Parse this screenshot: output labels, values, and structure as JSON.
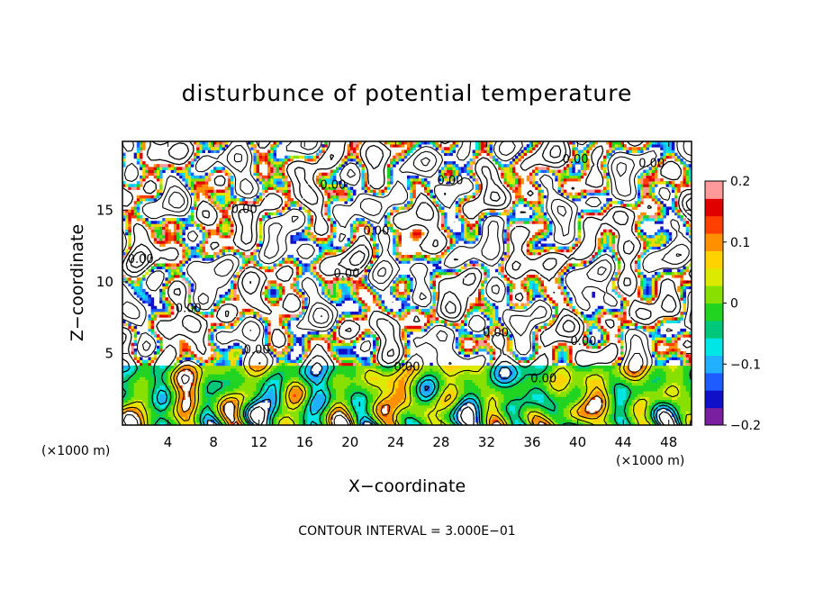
{
  "chart_data": {
    "type": "heatmap",
    "title": "disturbunce of potential temperature",
    "xlabel": "X−coordinate",
    "ylabel": "Z−coordinate",
    "x_unit": "(×1000 m)",
    "y_unit": "(×1000 m)",
    "footer": "CONTOUR INTERVAL = 3.000E−01",
    "x_ticks": [
      "4",
      "8",
      "12",
      "16",
      "20",
      "24",
      "28",
      "32",
      "36",
      "40",
      "44",
      "48"
    ],
    "x_tick_values": [
      4,
      8,
      12,
      16,
      20,
      24,
      28,
      32,
      36,
      40,
      44,
      48
    ],
    "y_ticks": [
      "5",
      "10",
      "15"
    ],
    "y_tick_values": [
      5,
      10,
      15
    ],
    "xlim": [
      0,
      50
    ],
    "ylim": [
      0,
      19.8
    ],
    "colorbar": {
      "ticks": [
        "0.2",
        "0.1",
        "0",
        "−0.1",
        "−0.2"
      ],
      "tick_values": [
        0.2,
        0.1,
        0,
        -0.1,
        -0.2
      ],
      "range": [
        -0.2,
        0.2
      ],
      "colors": [
        "#7a1fa0",
        "#1010c8",
        "#1f5cff",
        "#20b0ff",
        "#00e5e5",
        "#00c87a",
        "#22d422",
        "#88e000",
        "#dcea00",
        "#ffd200",
        "#ff9000",
        "#ff4000",
        "#e00000",
        "#ff9a9a"
      ]
    },
    "contour_interval": 0.3,
    "contour_labels": [
      "0.00",
      "0.00",
      "0.00",
      "0.00",
      "0.00",
      "0.00",
      "0.00",
      "0.00",
      "0.00",
      "0.00",
      "0.00",
      "0.00",
      "0.00",
      "0.00"
    ],
    "contour_label_positions": [
      {
        "x": 10.7,
        "y": 14.8
      },
      {
        "x": 18.5,
        "y": 16.5
      },
      {
        "x": 28.8,
        "y": 16.8
      },
      {
        "x": 1.6,
        "y": 11.3
      },
      {
        "x": 19.7,
        "y": 10.3
      },
      {
        "x": 5.8,
        "y": 7.9
      },
      {
        "x": 11.8,
        "y": 5.0
      },
      {
        "x": 32.8,
        "y": 6.2
      },
      {
        "x": 25.0,
        "y": 3.8
      },
      {
        "x": 40.5,
        "y": 5.6
      },
      {
        "x": 39.8,
        "y": 18.3
      },
      {
        "x": 46.5,
        "y": 18.0
      },
      {
        "x": 37.0,
        "y": 3.0
      },
      {
        "x": 22.3,
        "y": 13.3
      }
    ]
  }
}
